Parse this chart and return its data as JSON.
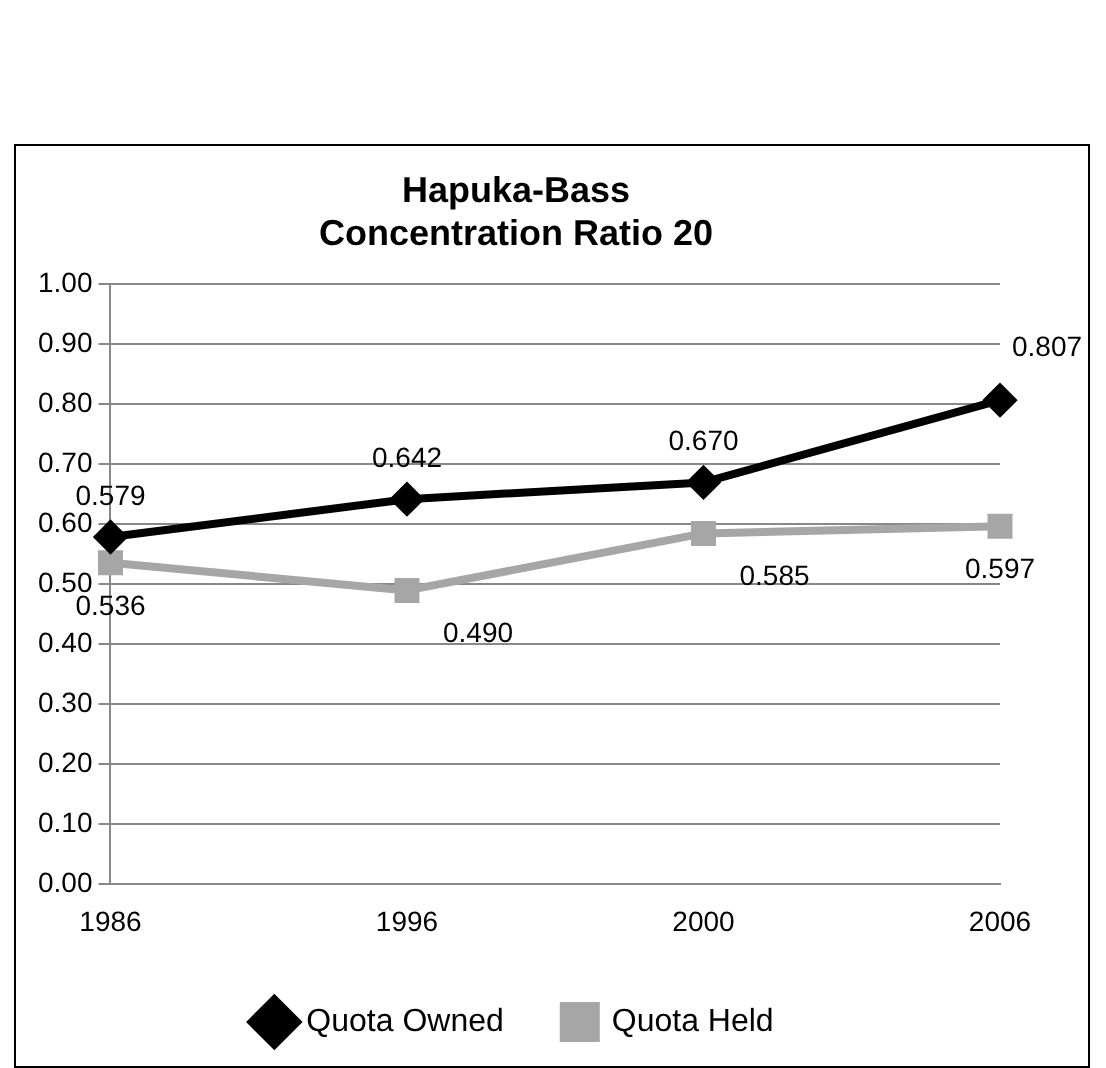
{
  "chart_data": {
    "type": "line",
    "title": "Hapuka-Bass\nConcentration Ratio 20",
    "categories": [
      "1986",
      "1996",
      "2000",
      "2006"
    ],
    "series": [
      {
        "name": "Quota Owned",
        "color": "#000000",
        "marker": "diamond",
        "values": [
          0.579,
          0.642,
          0.67,
          0.807
        ],
        "value_labels": [
          "0.579",
          "0.642",
          "0.670",
          "0.807"
        ]
      },
      {
        "name": "Quota Held",
        "color": "#a6a6a6",
        "marker": "square",
        "values": [
          0.536,
          0.49,
          0.585,
          0.597
        ],
        "value_labels": [
          "0.536",
          "0.490",
          "0.585",
          "0.597"
        ]
      }
    ],
    "ylim": [
      0,
      1
    ],
    "yticks": [
      {
        "value": 0,
        "label": "0.00"
      },
      {
        "value": 0.1,
        "label": "0.10"
      },
      {
        "value": 0.2,
        "label": "0.20"
      },
      {
        "value": 0.3,
        "label": "0.30"
      },
      {
        "value": 0.4,
        "label": "0.40"
      },
      {
        "value": 0.5,
        "label": "0.50"
      },
      {
        "value": 0.6,
        "label": "0.60"
      },
      {
        "value": 0.7,
        "label": "0.70"
      },
      {
        "value": 0.8,
        "label": "0.80"
      },
      {
        "value": 0.9,
        "label": "0.90"
      },
      {
        "value": 1,
        "label": "1.00"
      }
    ],
    "grid": "y",
    "legend": "bottom",
    "line_style": "solid"
  }
}
